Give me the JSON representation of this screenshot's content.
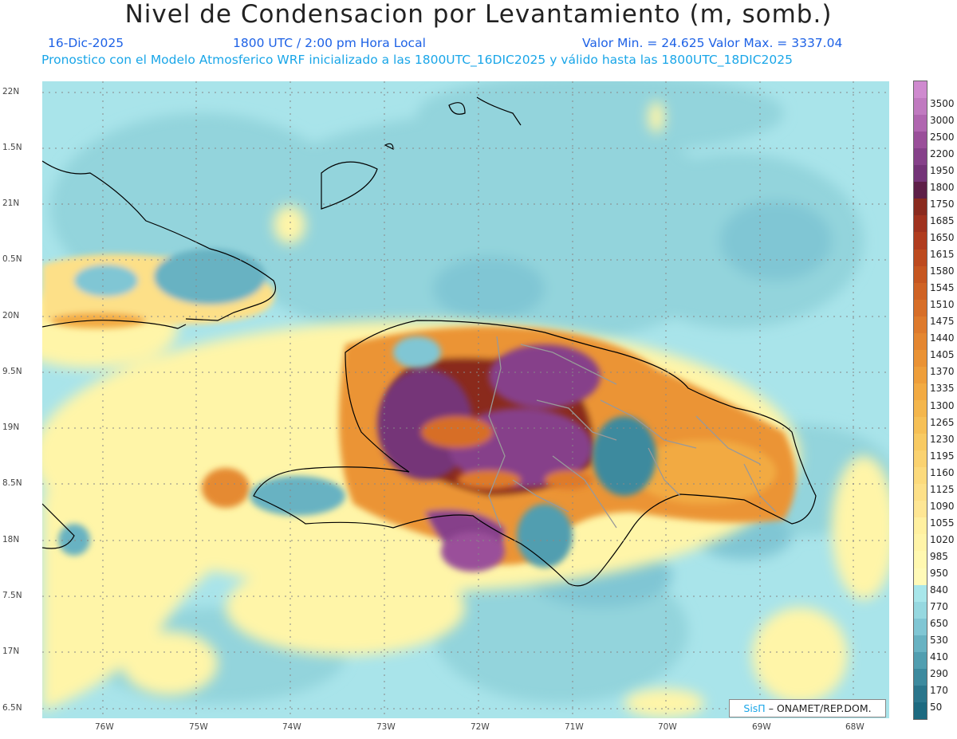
{
  "header": {
    "title": "Nivel de Condensacion por Levantamiento (m, somb.)",
    "date": "16-Dic-2025",
    "time": "1800 UTC / 2:00 pm Hora Local",
    "minmax": "Valor Min. = 24.625  Valor Max. = 3337.04",
    "model_line": "Pronostico con el Modelo Atmosferico WRF inicializado a las 1800UTC_16DIC2025 y válido hasta las  1800UTC_18DIC2025"
  },
  "axes": {
    "lat_labels": [
      "22N",
      "1.5N",
      "21N",
      "0.5N",
      "20N",
      "9.5N",
      "19N",
      "8.5N",
      "18N",
      "7.5N",
      "17N",
      "6.5N"
    ],
    "lon_labels": [
      "76W",
      "75W",
      "74W",
      "73W",
      "72W",
      "71W",
      "70W",
      "69W",
      "68W"
    ]
  },
  "colorbar": {
    "labels": [
      "3500",
      "3000",
      "2500",
      "2200",
      "1950",
      "1800",
      "1750",
      "1685",
      "1650",
      "1615",
      "1580",
      "1545",
      "1510",
      "1475",
      "1440",
      "1405",
      "1370",
      "1335",
      "1300",
      "1265",
      "1230",
      "1195",
      "1160",
      "1125",
      "1090",
      "1055",
      "1020",
      "985",
      "950",
      "840",
      "770",
      "650",
      "530",
      "410",
      "290",
      "170",
      "50"
    ],
    "colors": [
      "#c07ac0",
      "#b066b0",
      "#9a4f9a",
      "#86418a",
      "#743478",
      "#5e1f48",
      "#8a2a1e",
      "#a0321e",
      "#b03c1e",
      "#bd4a1e",
      "#c65620",
      "#cf6224",
      "#d76e28",
      "#de7a2c",
      "#e48630",
      "#ea9234",
      "#ee9e3a",
      "#f2aa42",
      "#f4b64c",
      "#f6c056",
      "#f8ca62",
      "#fad270",
      "#fcda7c",
      "#fde088",
      "#fee694",
      "#fff0a0",
      "#fff4a8",
      "#fff8b0",
      "#fffab8",
      "#a8e6ea",
      "#96d8e0",
      "#80c6d4",
      "#68b2c2",
      "#519eb0",
      "#3d8a9e",
      "#2b768c",
      "#1d6a80"
    ]
  },
  "credit": {
    "sis": "SisΠ",
    "org": "– ONAMET/REP.DOM."
  }
}
